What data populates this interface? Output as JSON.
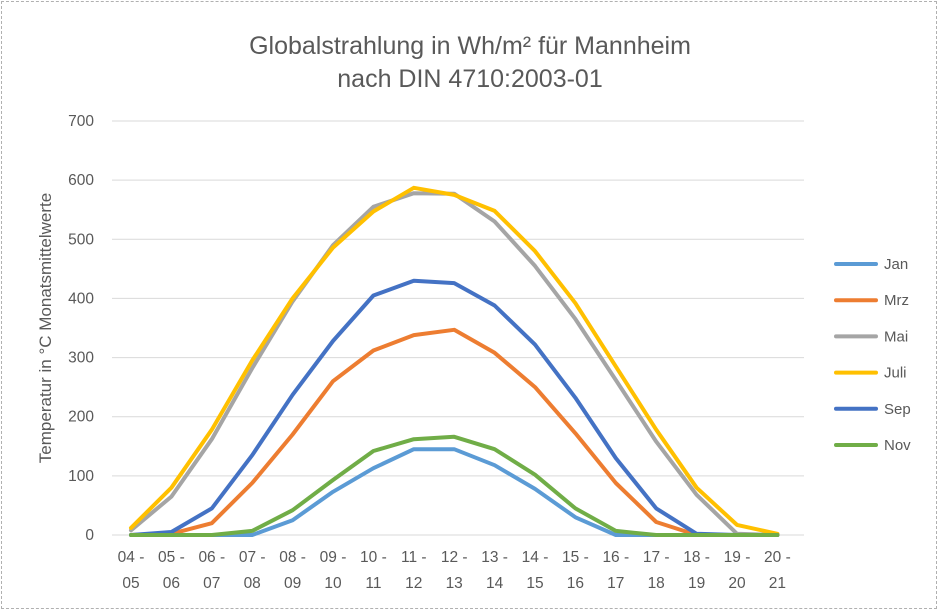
{
  "chart_data": {
    "type": "line",
    "title_line1": "Globalstrahlung in Wh/m² für Mannheim",
    "title_line2": "nach DIN 4710:2003-01",
    "ylabel": "Temperatur in °C Monatsmittelwerte",
    "xlabel": "",
    "ylim": [
      0,
      700
    ],
    "yticks": [
      0,
      100,
      200,
      300,
      400,
      500,
      600,
      700
    ],
    "grid": "horizontal",
    "legend_position": "right",
    "categories": [
      [
        "04 -",
        "05"
      ],
      [
        "05 -",
        "06"
      ],
      [
        "06 -",
        "07"
      ],
      [
        "07 -",
        "08"
      ],
      [
        "08 -",
        "09"
      ],
      [
        "09 -",
        "10"
      ],
      [
        "10 -",
        "11"
      ],
      [
        "11 -",
        "12"
      ],
      [
        "12 -",
        "13"
      ],
      [
        "13 -",
        "14"
      ],
      [
        "14 -",
        "15"
      ],
      [
        "15 -",
        "16"
      ],
      [
        "16 -",
        "17"
      ],
      [
        "17 -",
        "18"
      ],
      [
        "18 -",
        "19"
      ],
      [
        "19 -",
        "20"
      ],
      [
        "20 -",
        "21"
      ]
    ],
    "series": [
      {
        "name": "Jan",
        "color": "#5B9BD5",
        "values": [
          0,
          0,
          0,
          0,
          25,
          73,
          113,
          145,
          145,
          118,
          78,
          30,
          0,
          0,
          0,
          0,
          0
        ]
      },
      {
        "name": "Mrz",
        "color": "#ED7D31",
        "values": [
          0,
          2,
          20,
          88,
          170,
          260,
          312,
          338,
          347,
          308,
          250,
          172,
          88,
          22,
          0,
          0,
          0
        ]
      },
      {
        "name": "Mai",
        "color": "#A5A5A5",
        "values": [
          8,
          65,
          162,
          282,
          395,
          490,
          555,
          578,
          577,
          530,
          455,
          365,
          262,
          158,
          68,
          2,
          0
        ]
      },
      {
        "name": "Juli",
        "color": "#FFC000",
        "values": [
          12,
          80,
          178,
          295,
          400,
          486,
          547,
          587,
          575,
          548,
          480,
          392,
          285,
          178,
          80,
          17,
          2
        ]
      },
      {
        "name": "Sep",
        "color": "#4472C4",
        "values": [
          0,
          5,
          45,
          135,
          237,
          328,
          405,
          430,
          426,
          388,
          322,
          232,
          130,
          45,
          2,
          0,
          0
        ]
      },
      {
        "name": "Nov",
        "color": "#70AD47",
        "values": [
          0,
          0,
          0,
          7,
          42,
          93,
          142,
          162,
          166,
          145,
          102,
          45,
          7,
          0,
          0,
          0,
          0
        ]
      }
    ]
  }
}
